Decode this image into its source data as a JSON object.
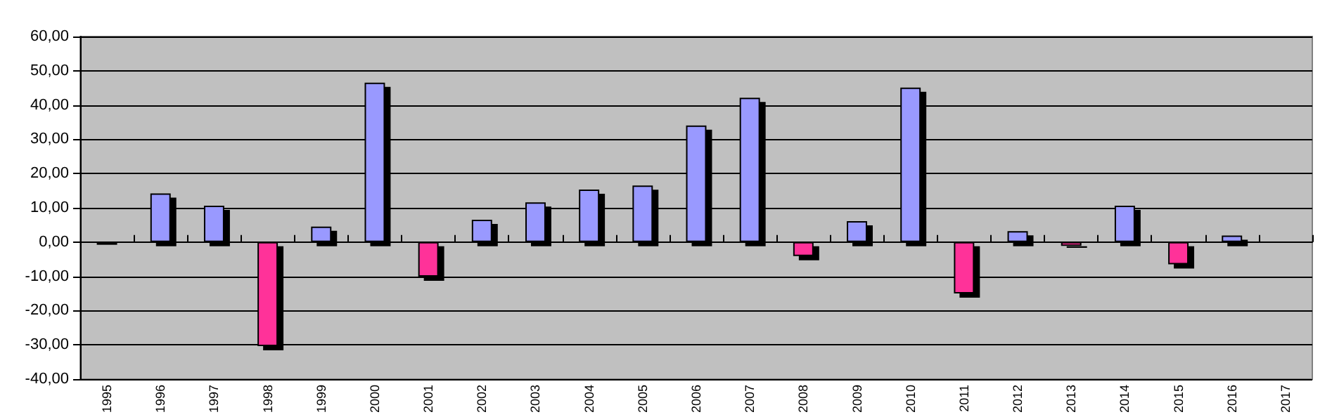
{
  "chart_data": {
    "type": "bar",
    "categories": [
      "1995",
      "1996",
      "1997",
      "1998",
      "1999",
      "2000",
      "2001",
      "2002",
      "2003",
      "2004",
      "2005",
      "2006",
      "2007",
      "2008",
      "2009",
      "2010",
      "2011",
      "2012",
      "2013",
      "2014",
      "2015",
      "2016",
      "2017"
    ],
    "values": [
      -0.8,
      14.2,
      10.6,
      -30.4,
      4.5,
      46.5,
      -10.1,
      6.5,
      11.6,
      15.3,
      16.5,
      34.0,
      42.1,
      -4.1,
      6.1,
      45.1,
      -15.0,
      3.2,
      -1.1,
      10.6,
      -6.5,
      1.9,
      null
    ],
    "colors": [
      "#ff3399",
      "#9999ff",
      "#9999ff",
      "#ff3399",
      "#9999ff",
      "#9999ff",
      "#ff3399",
      "#9999ff",
      "#9999ff",
      "#9999ff",
      "#9999ff",
      "#9999ff",
      "#9999ff",
      "#ff3399",
      "#9999ff",
      "#9999ff",
      "#ff3399",
      "#9999ff",
      "#ff3399",
      "#9999ff",
      "#ff3399",
      "#9999ff",
      "#9999ff"
    ],
    "ylim": [
      -40,
      60
    ],
    "yticks": [
      {
        "value": -40,
        "label": "-40,00"
      },
      {
        "value": -30,
        "label": "-30,00"
      },
      {
        "value": -20,
        "label": "-20,00"
      },
      {
        "value": -10,
        "label": "-10,00"
      },
      {
        "value": 0,
        "label": "0,00"
      },
      {
        "value": 10,
        "label": "10,00"
      },
      {
        "value": 20,
        "label": "20,00"
      },
      {
        "value": 30,
        "label": "30,00"
      },
      {
        "value": 40,
        "label": "40,00"
      },
      {
        "value": 50,
        "label": "50,00"
      },
      {
        "value": 60,
        "label": "60,00"
      }
    ],
    "grid": "y"
  }
}
